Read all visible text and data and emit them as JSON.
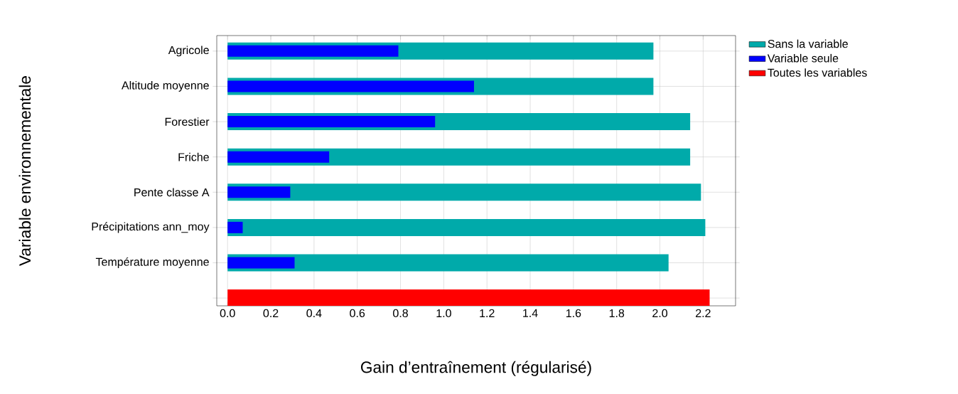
{
  "chart_data": {
    "type": "bar",
    "orientation": "horizontal",
    "xlabel": "Gain d’entraînement (régularisé)",
    "ylabel": "Variable environnementale",
    "categories": [
      "Agricole",
      "Altitude moyenne",
      "Forestier",
      "Friche",
      "Pente classe A",
      "Précipitations ann_moy",
      "Température moyenne",
      null
    ],
    "series": [
      {
        "name": "Sans la variable",
        "color": "#00aaaa",
        "values": [
          1.97,
          1.97,
          2.14,
          2.14,
          2.19,
          2.21,
          2.04,
          null
        ]
      },
      {
        "name": "Variable seule",
        "color": "#0000ff",
        "values": [
          0.79,
          1.14,
          0.96,
          0.47,
          0.29,
          0.07,
          0.31,
          null
        ]
      },
      {
        "name": "Toutes les variables",
        "color": "#ff0000",
        "values": [
          null,
          null,
          null,
          null,
          null,
          null,
          null,
          2.23
        ]
      }
    ],
    "xlim": [
      -0.05,
      2.35
    ],
    "xticks": [
      {
        "value": 0,
        "label": "0.0"
      },
      {
        "value": 0.2,
        "label": "0.2"
      },
      {
        "value": 0.4,
        "label": "0.4"
      },
      {
        "value": 0.6,
        "label": "0.6"
      },
      {
        "value": 0.8,
        "label": "0.8"
      },
      {
        "value": 1.0,
        "label": "1.0"
      },
      {
        "value": 1.2,
        "label": "1.2"
      },
      {
        "value": 1.4,
        "label": "1.4"
      },
      {
        "value": 1.6,
        "label": "1.6"
      },
      {
        "value": 1.8,
        "label": "1.8"
      },
      {
        "value": 2.0,
        "label": "2.0"
      },
      {
        "value": 2.2,
        "label": "2.2"
      }
    ],
    "grid": true,
    "legend": "top right"
  }
}
